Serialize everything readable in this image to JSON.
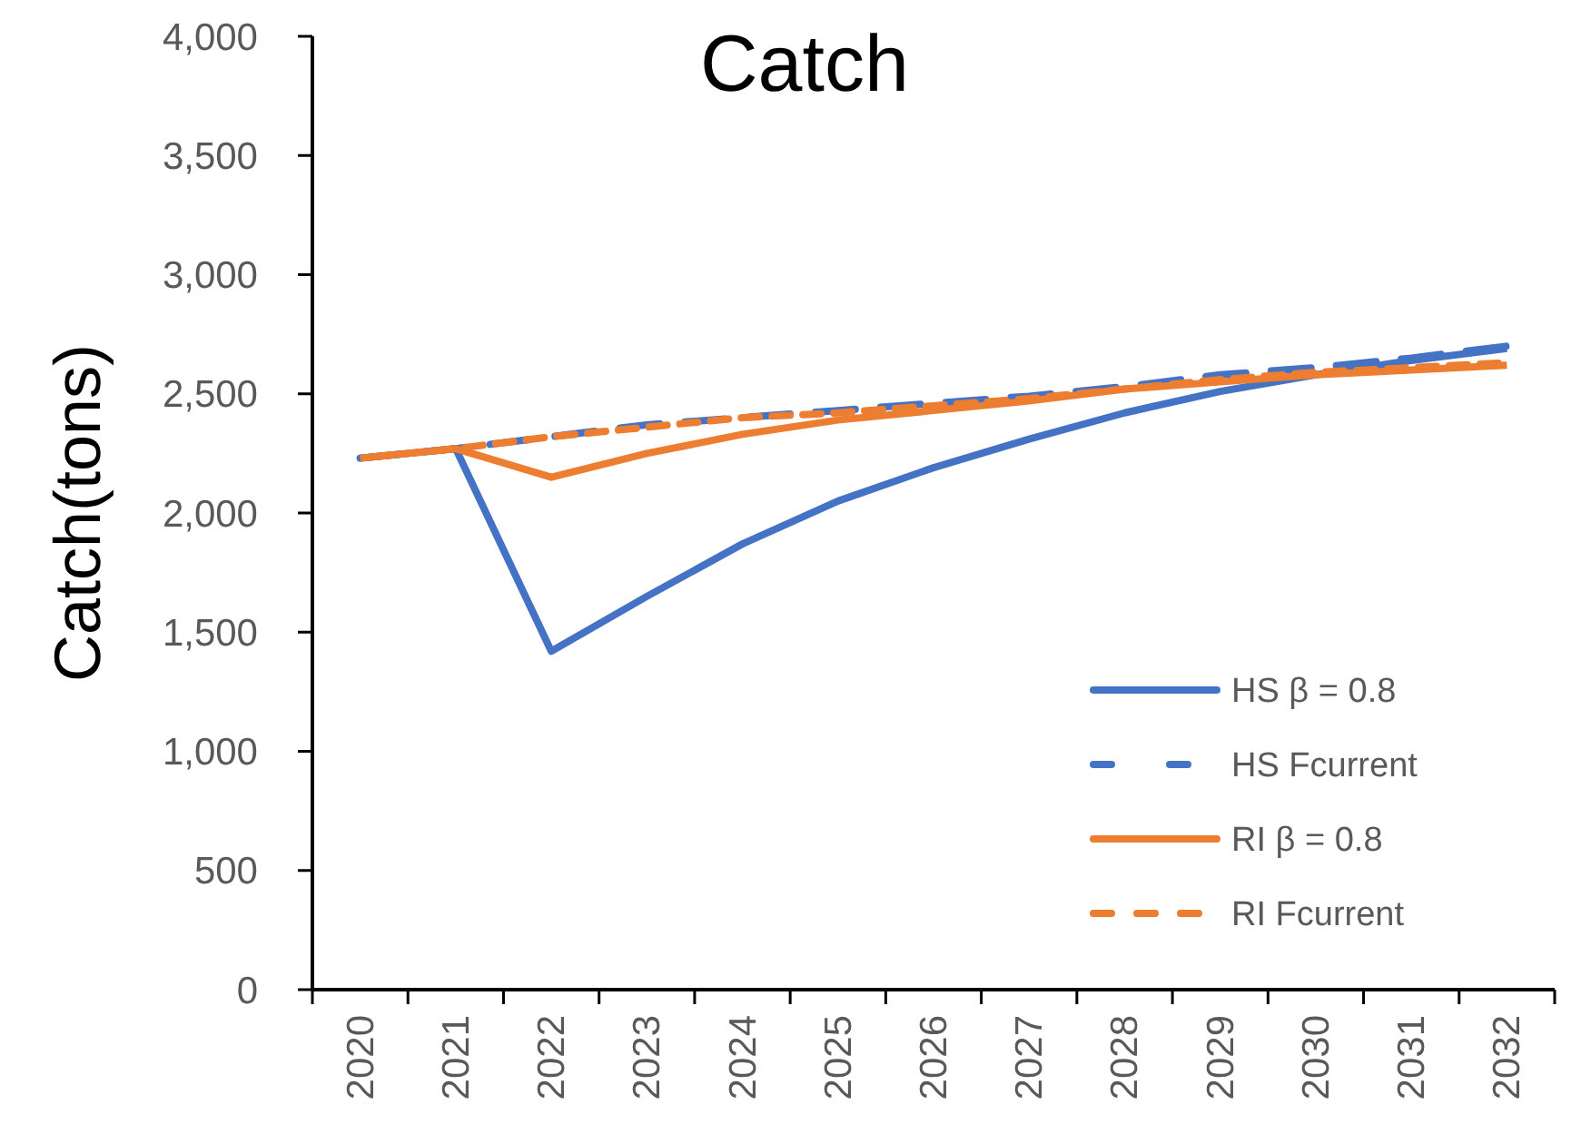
{
  "chart_data": {
    "type": "line",
    "title": "Catch",
    "ylabel": "Catch(tons)",
    "categories": [
      "2020",
      "2021",
      "2022",
      "2023",
      "2024",
      "2025",
      "2026",
      "2027",
      "2028",
      "2029",
      "2030",
      "2031",
      "2032"
    ],
    "ylim": [
      0,
      4000
    ],
    "yticks": [
      {
        "value": 0,
        "label": "0"
      },
      {
        "value": 500,
        "label": "500"
      },
      {
        "value": 1000,
        "label": "1,000"
      },
      {
        "value": 1500,
        "label": "1,500"
      },
      {
        "value": 2000,
        "label": "2,000"
      },
      {
        "value": 2500,
        "label": "2,500"
      },
      {
        "value": 3000,
        "label": "3,000"
      },
      {
        "value": 3500,
        "label": "3,500"
      },
      {
        "value": 4000,
        "label": "4,000"
      }
    ],
    "grid": false,
    "legend": "bottom right",
    "marker": "none",
    "series": [
      {
        "name": "HS β = 0.8",
        "color": "#4472c4",
        "line_style": "solid",
        "values": [
          2230,
          2270,
          1420,
          1650,
          1870,
          2050,
          2190,
          2310,
          2420,
          2510,
          2580,
          2640,
          2690
        ]
      },
      {
        "name": "HS Fcurrent",
        "color": "#4472c4",
        "line_style": "dashed",
        "values": [
          2230,
          2270,
          2320,
          2370,
          2400,
          2430,
          2460,
          2490,
          2530,
          2580,
          2610,
          2650,
          2700
        ]
      },
      {
        "name": "RI β = 0.8",
        "color": "#ed7d31",
        "line_style": "solid",
        "values": [
          2230,
          2270,
          2150,
          2250,
          2330,
          2390,
          2430,
          2470,
          2520,
          2550,
          2580,
          2600,
          2620
        ]
      },
      {
        "name": "RI Fcurrent",
        "color": "#ed7d31",
        "line_style": "dotted",
        "values": [
          2230,
          2270,
          2320,
          2360,
          2400,
          2420,
          2450,
          2480,
          2520,
          2560,
          2590,
          2610,
          2630
        ]
      }
    ]
  }
}
